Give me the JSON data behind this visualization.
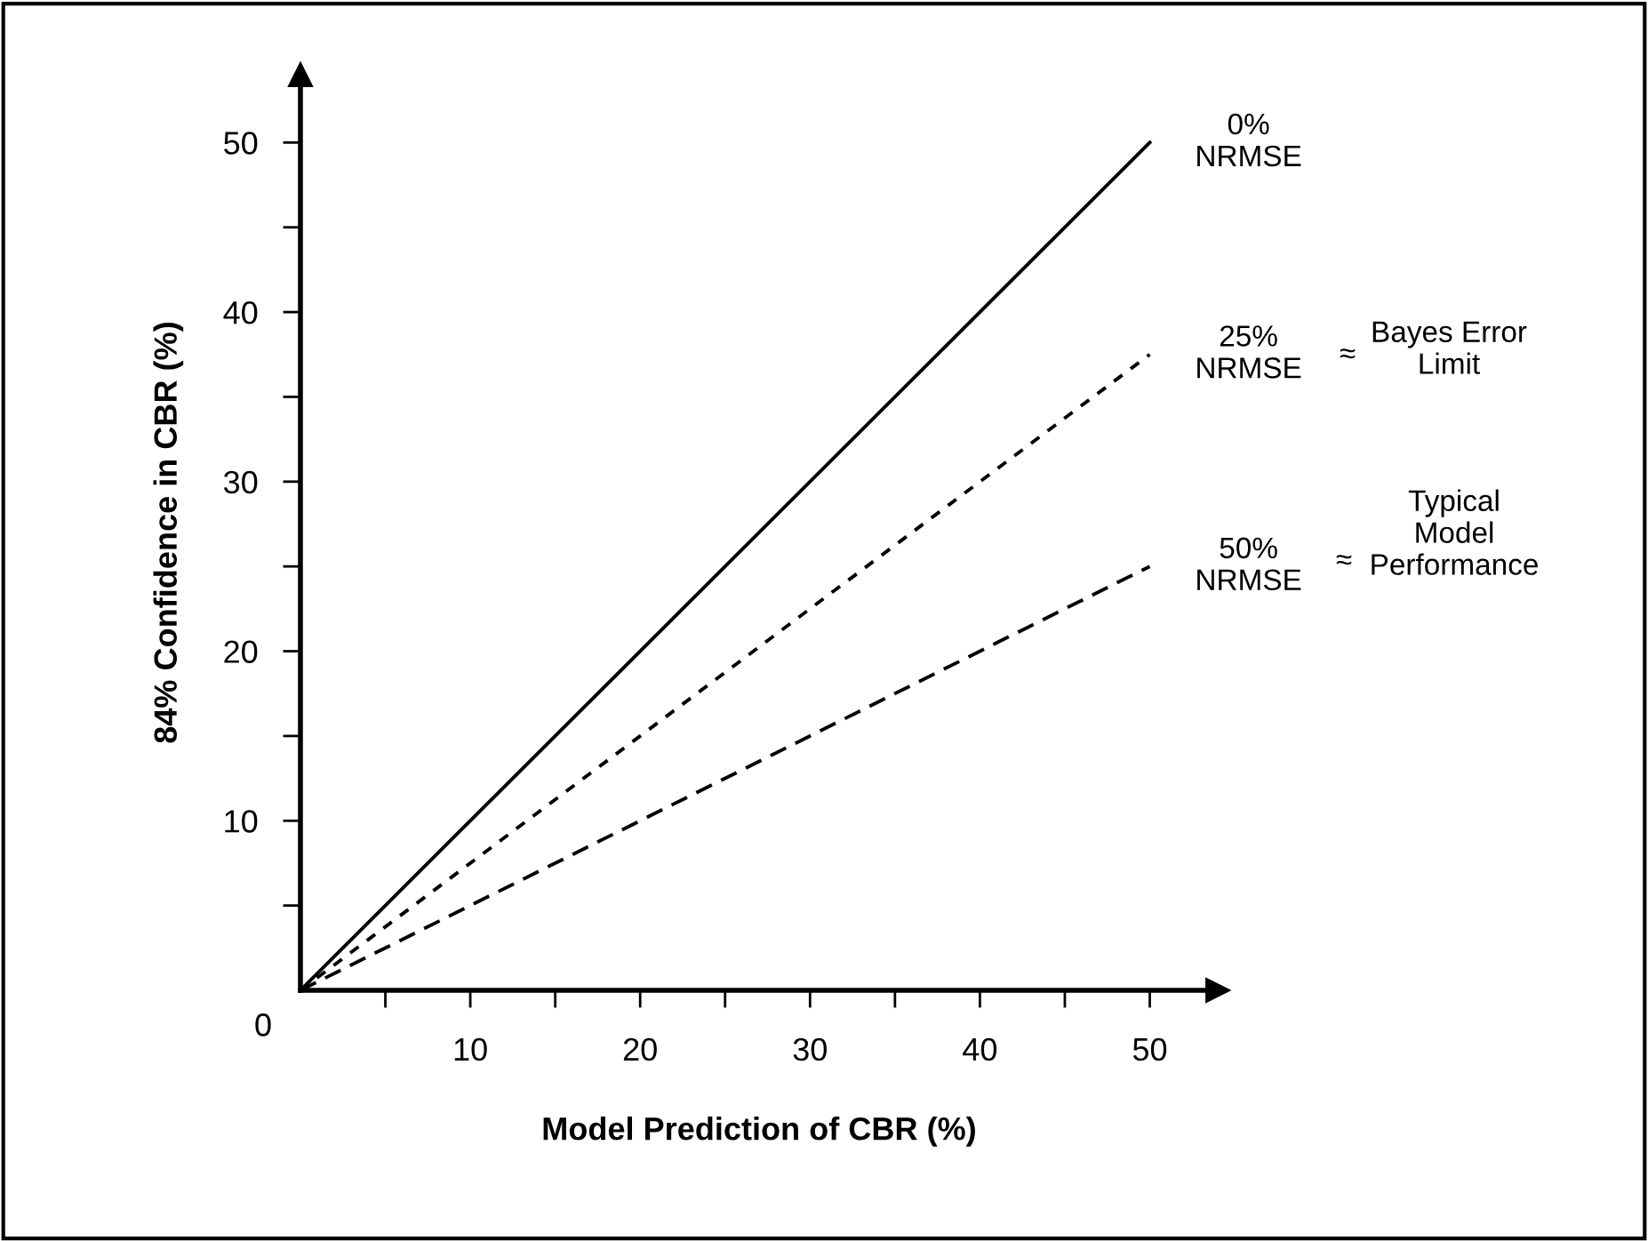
{
  "chart_data": {
    "type": "line",
    "xlabel": "Model Prediction of CBR (%)",
    "ylabel": "84% Confidence in CBR (%)",
    "xlim": [
      0,
      54
    ],
    "ylim": [
      0,
      54
    ],
    "xticks": [
      {
        "value": 5,
        "label": null
      },
      10,
      {
        "value": 15,
        "label": null
      },
      20,
      {
        "value": 25,
        "label": null
      },
      30,
      {
        "value": 35,
        "label": null
      },
      40,
      {
        "value": 45,
        "label": null
      },
      50
    ],
    "yticks": [
      {
        "value": 5,
        "label": null
      },
      10,
      {
        "value": 15,
        "label": null
      },
      20,
      {
        "value": 25,
        "label": null
      },
      30,
      {
        "value": 35,
        "label": null
      },
      40,
      {
        "value": 45,
        "label": null
      },
      50
    ],
    "x": [
      0,
      50
    ],
    "grid": false,
    "legend": false,
    "marker": "none",
    "series": [
      {
        "name": "0%\nNRMSE",
        "color": "#000000",
        "values": [
          0,
          50
        ],
        "line_style": "solid"
      },
      {
        "name": "25%\nNRMSE",
        "color": "#000000",
        "values": [
          0,
          37.5
        ],
        "line_style": "dotted"
      },
      {
        "name": "50%\nNRMSE",
        "color": "#000000",
        "values": [
          0,
          25
        ],
        "line_style": "dashed"
      }
    ],
    "annotations": [
      "0",
      "≈",
      "Bayes Error\nLimit",
      "≈",
      "Typical\nModel\nPerformance"
    ]
  }
}
